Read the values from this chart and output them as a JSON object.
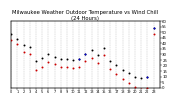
{
  "title": "Milwaukee Weather Outdoor Temperature vs Wind Chill\n(24 Hours)",
  "title_fontsize": 3.8,
  "background_color": "#ffffff",
  "grid_color": "#bbbbbb",
  "ylim": [
    0,
    60
  ],
  "xlim": [
    0,
    24
  ],
  "yticks": [
    0,
    5,
    10,
    15,
    20,
    25,
    30,
    35,
    40,
    45,
    50,
    55,
    60
  ],
  "xticks": [
    0,
    1,
    2,
    3,
    4,
    5,
    6,
    7,
    8,
    9,
    10,
    11,
    12,
    13,
    14,
    15,
    16,
    17,
    18,
    19,
    20,
    21,
    22,
    23
  ],
  "temp_x": [
    0,
    1,
    2,
    3,
    4,
    5,
    6,
    7,
    8,
    9,
    10,
    11,
    12,
    13,
    14,
    15,
    16,
    17,
    18,
    19,
    20,
    21,
    22,
    23
  ],
  "temp_y": [
    48,
    44,
    38,
    37,
    24,
    27,
    30,
    28,
    26,
    26,
    25,
    26,
    30,
    34,
    29,
    36,
    24,
    20,
    16,
    13,
    10,
    9,
    10,
    54
  ],
  "wind_x": [
    0,
    1,
    2,
    3,
    4,
    5,
    6,
    7,
    8,
    9,
    10,
    11,
    12,
    13,
    14,
    15,
    16,
    17,
    18,
    19,
    20,
    21,
    22,
    23
  ],
  "wind_y": [
    43,
    39,
    32,
    30,
    16,
    19,
    23,
    21,
    19,
    19,
    18,
    19,
    24,
    27,
    22,
    29,
    17,
    12,
    8,
    4,
    1,
    -1,
    0,
    48
  ],
  "blue_x": [
    11,
    12,
    22,
    23
  ],
  "blue_y": [
    26,
    30,
    10,
    54
  ],
  "temp_color": "#000000",
  "wind_color": "#cc0000",
  "blue_color": "#0000cc",
  "red_top_x": [
    23
  ],
  "red_top_y": [
    54
  ],
  "marker_size": 2.0,
  "tick_fontsize": 2.8,
  "tick_fontsize_x": 2.5
}
